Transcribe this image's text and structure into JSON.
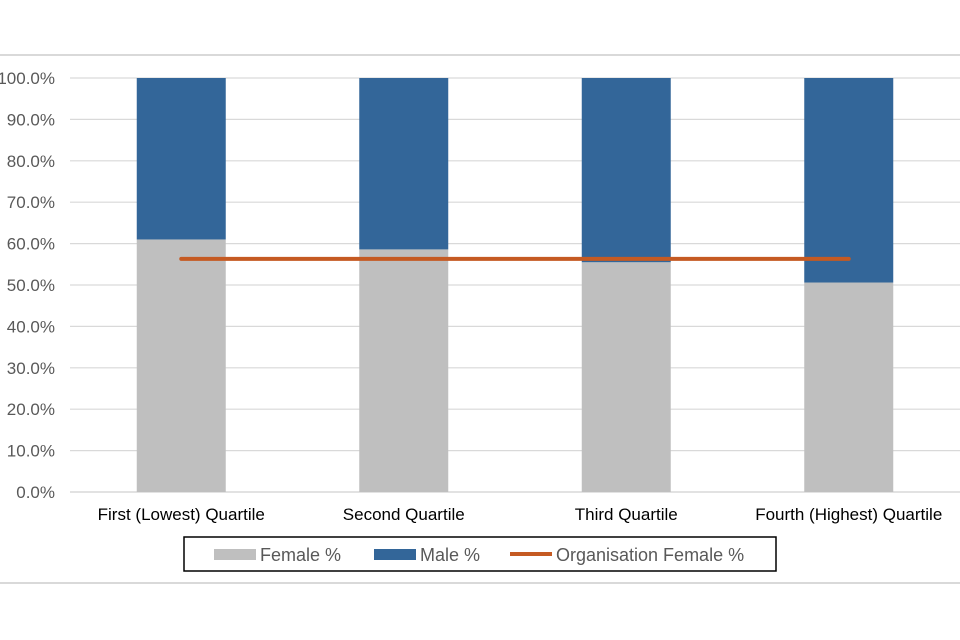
{
  "chart_data": {
    "type": "bar",
    "stacked": true,
    "categories": [
      "First (Lowest) Quartile",
      "Second Quartile",
      "Third Quartile",
      "Fourth (Highest) Quartile"
    ],
    "series": [
      {
        "name": "Female %",
        "values": [
          61.0,
          58.6,
          55.5,
          50.6
        ],
        "color": "#bfbfbf"
      },
      {
        "name": "Male %",
        "values": [
          39.0,
          41.4,
          44.5,
          49.4
        ],
        "color": "#336699"
      }
    ],
    "line": {
      "name": "Organisation Female %",
      "value": 56.3,
      "color": "#c55a22"
    },
    "yticks": [
      "0.0%",
      "10.0%",
      "20.0%",
      "30.0%",
      "40.0%",
      "50.0%",
      "60.0%",
      "70.0%",
      "80.0%",
      "90.0%",
      "100.0%"
    ],
    "ylim": [
      0,
      100
    ],
    "grid": true,
    "legend": {
      "position": "bottom",
      "items": [
        "Female %",
        "Male %",
        "Organisation Female %"
      ]
    }
  }
}
